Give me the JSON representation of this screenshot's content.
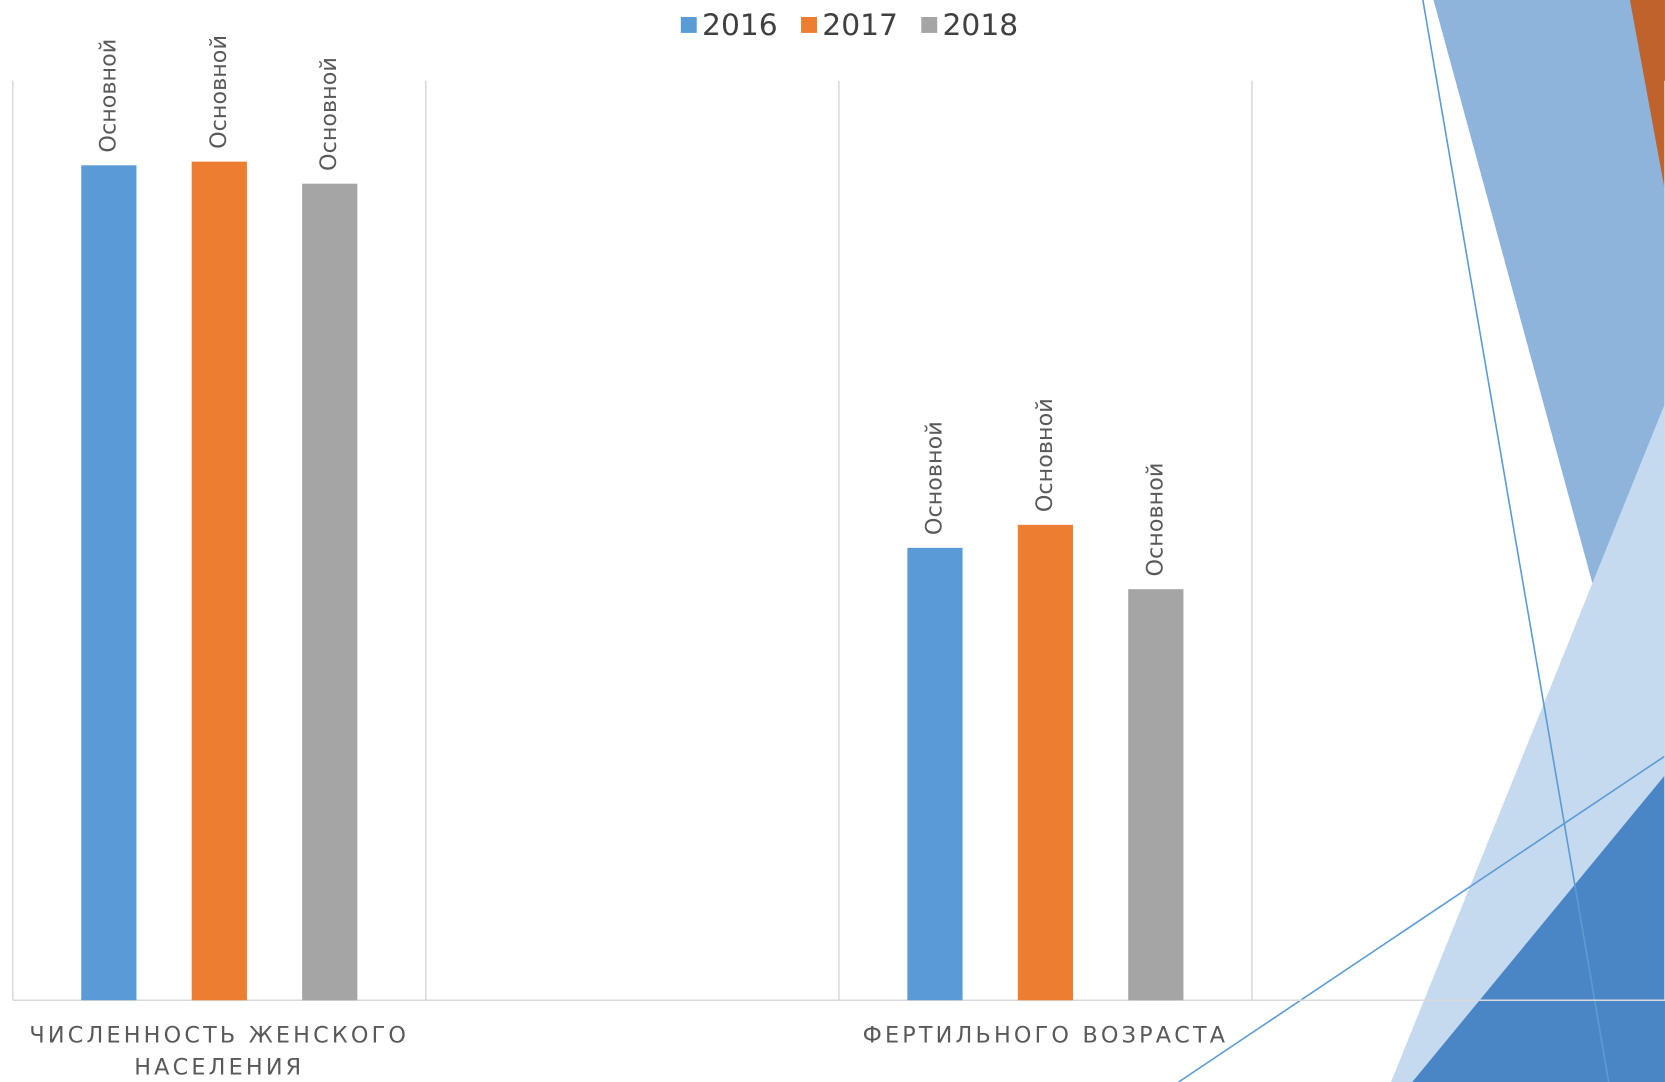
{
  "chart_data": {
    "type": "bar",
    "categories": [
      "ЧИСЛЕННОСТЬ ЖЕНСКОГО НАСЕЛЕНИЯ",
      null,
      "ФЕРТИЛЬНОГО ВОЗРАСТА",
      null
    ],
    "series": [
      {
        "name": "2016",
        "color": "#5b9bd5",
        "values": [
          90.8,
          null,
          49.2,
          null
        ],
        "value_labels": [
          "Основной",
          null,
          "Основной",
          null
        ]
      },
      {
        "name": "2017",
        "color": "#ed7d31",
        "values": [
          91.2,
          null,
          51.7,
          null
        ],
        "value_labels": [
          "Основной",
          null,
          "Основной",
          null
        ]
      },
      {
        "name": "2018",
        "color": "#a5a5a5",
        "values": [
          88.8,
          null,
          44.7,
          null
        ],
        "value_labels": [
          "Основной",
          null,
          "Основной",
          null
        ]
      }
    ],
    "ylim": [
      0,
      100
    ],
    "grid": true,
    "legend": "top"
  }
}
